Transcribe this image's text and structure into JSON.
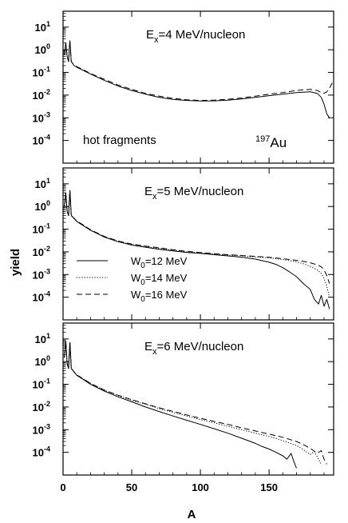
{
  "figure": {
    "xlabel": "A",
    "ylabel": "yield"
  },
  "legend": [
    {
      "label": "W",
      "sub": "0",
      "rest": "=12 MeV",
      "style": "solid"
    },
    {
      "label": "W",
      "sub": "0",
      "rest": "=14 MeV",
      "style": "dotted"
    },
    {
      "label": "W",
      "sub": "0",
      "rest": "=16 MeV",
      "style": "dashed"
    }
  ],
  "chart_data": [
    {
      "type": "line",
      "title_main": "E",
      "title_sub": "x",
      "title_rest": "=4 MeV/nucleon",
      "note": "hot fragments",
      "tag_sup": "197",
      "tag": "Au",
      "x_ticks": [
        "0",
        "50",
        "100",
        "150"
      ],
      "y_ticks": [
        {
          "base": "10",
          "exp": "1"
        },
        {
          "base": "10",
          "exp": "0"
        },
        {
          "base": "10",
          "exp": "-1"
        },
        {
          "base": "10",
          "exp": "-2"
        },
        {
          "base": "10",
          "exp": "-3"
        },
        {
          "base": "10",
          "exp": "-4"
        }
      ],
      "xlim": [
        0,
        197
      ],
      "ylim_log10": [
        -5,
        1.7
      ],
      "yscale": "log",
      "series": [
        {
          "style": "solid",
          "x": [
            1,
            2,
            3,
            4,
            5,
            6,
            8,
            10,
            15,
            20,
            30,
            40,
            50,
            60,
            70,
            80,
            90,
            100,
            110,
            120,
            130,
            140,
            150,
            160,
            170,
            180,
            185,
            188,
            190,
            192,
            194
          ],
          "y": [
            0.6,
            2,
            0.5,
            0.3,
            2.5,
            0.3,
            0.2,
            0.17,
            0.12,
            0.085,
            0.045,
            0.025,
            0.016,
            0.011,
            0.008,
            0.0065,
            0.0058,
            0.0055,
            0.0056,
            0.006,
            0.0068,
            0.008,
            0.0095,
            0.011,
            0.013,
            0.014,
            0.012,
            0.008,
            0.004,
            0.0015,
            0.001
          ]
        },
        {
          "style": "dashed",
          "x": [
            1,
            2,
            3,
            4,
            5,
            6,
            8,
            10,
            15,
            20,
            30,
            40,
            50,
            60,
            70,
            80,
            90,
            100,
            110,
            120,
            130,
            140,
            150,
            160,
            170,
            180,
            185,
            188,
            190,
            192,
            194,
            196
          ],
          "y": [
            0.6,
            2,
            0.5,
            0.3,
            2.5,
            0.3,
            0.21,
            0.18,
            0.13,
            0.09,
            0.05,
            0.028,
            0.018,
            0.012,
            0.009,
            0.0072,
            0.0062,
            0.0058,
            0.006,
            0.0065,
            0.0075,
            0.009,
            0.011,
            0.013,
            0.016,
            0.018,
            0.016,
            0.013,
            0.012,
            0.014,
            0.02,
            0.035
          ]
        }
      ]
    },
    {
      "type": "line",
      "title_main": "E",
      "title_sub": "x",
      "title_rest": "=5 MeV/nucleon",
      "x_ticks": [
        "0",
        "50",
        "100",
        "150"
      ],
      "y_ticks": [
        {
          "base": "10",
          "exp": "1"
        },
        {
          "base": "10",
          "exp": "0"
        },
        {
          "base": "10",
          "exp": "-1"
        },
        {
          "base": "10",
          "exp": "-2"
        },
        {
          "base": "10",
          "exp": "-3"
        },
        {
          "base": "10",
          "exp": "-4"
        }
      ],
      "xlim": [
        0,
        197
      ],
      "ylim_log10": [
        -5,
        1.7
      ],
      "yscale": "log",
      "series": [
        {
          "style": "solid",
          "x": [
            1,
            2,
            3,
            4,
            5,
            6,
            8,
            10,
            15,
            20,
            30,
            40,
            50,
            60,
            70,
            80,
            90,
            100,
            110,
            120,
            130,
            140,
            150,
            155,
            160,
            165,
            170,
            175,
            180,
            183,
            186,
            188,
            190,
            192,
            194
          ],
          "y": [
            1,
            4,
            0.6,
            0.4,
            5,
            0.4,
            0.3,
            0.22,
            0.14,
            0.09,
            0.045,
            0.028,
            0.02,
            0.016,
            0.013,
            0.011,
            0.0095,
            0.0085,
            0.0075,
            0.0066,
            0.0058,
            0.0048,
            0.0035,
            0.0028,
            0.002,
            0.0013,
            0.0008,
            0.0004,
            0.00022,
            8e-05,
            5e-05,
            0.00012,
            4e-05,
            8e-05,
            3e-05
          ]
        },
        {
          "style": "dotted",
          "x": [
            1,
            2,
            3,
            4,
            5,
            6,
            8,
            10,
            15,
            20,
            30,
            40,
            50,
            60,
            70,
            80,
            90,
            100,
            110,
            120,
            130,
            140,
            150,
            160,
            170,
            175,
            180,
            185,
            188,
            190,
            192,
            194
          ],
          "y": [
            1,
            4,
            0.6,
            0.4,
            5,
            0.4,
            0.3,
            0.22,
            0.14,
            0.09,
            0.046,
            0.029,
            0.021,
            0.017,
            0.014,
            0.012,
            0.01,
            0.009,
            0.008,
            0.0072,
            0.0066,
            0.006,
            0.0054,
            0.0046,
            0.0036,
            0.003,
            0.0023,
            0.0016,
            0.0011,
            0.0007,
            0.0003,
            0.0001
          ]
        },
        {
          "style": "dashed",
          "x": [
            1,
            2,
            3,
            4,
            5,
            6,
            8,
            10,
            15,
            20,
            30,
            40,
            50,
            60,
            70,
            80,
            90,
            100,
            110,
            120,
            130,
            140,
            150,
            160,
            170,
            175,
            180,
            185,
            188,
            190,
            192,
            194
          ],
          "y": [
            1,
            4,
            0.6,
            0.4,
            5,
            0.4,
            0.3,
            0.23,
            0.15,
            0.095,
            0.048,
            0.03,
            0.022,
            0.018,
            0.015,
            0.0125,
            0.0105,
            0.0093,
            0.0083,
            0.0075,
            0.0069,
            0.0063,
            0.0057,
            0.005,
            0.0042,
            0.0038,
            0.0033,
            0.0027,
            0.0022,
            0.0016,
            0.0009,
            0.0004
          ]
        }
      ]
    },
    {
      "type": "line",
      "title_main": "E",
      "title_sub": "x",
      "title_rest": "=6 MeV/nucleon",
      "x_ticks": [
        "0",
        "50",
        "100",
        "150"
      ],
      "y_ticks": [
        {
          "base": "10",
          "exp": "1"
        },
        {
          "base": "10",
          "exp": "0"
        },
        {
          "base": "10",
          "exp": "-1"
        },
        {
          "base": "10",
          "exp": "-2"
        },
        {
          "base": "10",
          "exp": "-3"
        },
        {
          "base": "10",
          "exp": "-4"
        }
      ],
      "xlim": [
        0,
        197
      ],
      "ylim_log10": [
        -5,
        1.7
      ],
      "yscale": "log",
      "series": [
        {
          "style": "solid",
          "x": [
            1,
            2,
            3,
            4,
            5,
            6,
            8,
            10,
            15,
            20,
            30,
            40,
            50,
            60,
            70,
            80,
            90,
            100,
            110,
            120,
            130,
            140,
            145,
            150,
            155,
            160,
            163,
            166,
            168,
            170
          ],
          "y": [
            1.5,
            8,
            0.8,
            0.5,
            7,
            0.5,
            0.35,
            0.25,
            0.16,
            0.1,
            0.05,
            0.028,
            0.017,
            0.01,
            0.0063,
            0.004,
            0.0026,
            0.0017,
            0.0011,
            0.0007,
            0.00042,
            0.00025,
            0.00018,
            0.00014,
            0.0001,
            7e-05,
            5e-05,
            9e-05,
            4e-05,
            2e-05
          ]
        },
        {
          "style": "dotted",
          "x": [
            1,
            2,
            3,
            4,
            5,
            6,
            8,
            10,
            15,
            20,
            30,
            40,
            50,
            60,
            70,
            80,
            90,
            100,
            110,
            120,
            130,
            140,
            150,
            160,
            170,
            175,
            180,
            183,
            186,
            188
          ],
          "y": [
            1.5,
            8,
            0.8,
            0.5,
            7,
            0.5,
            0.35,
            0.26,
            0.17,
            0.11,
            0.055,
            0.032,
            0.02,
            0.013,
            0.0085,
            0.0058,
            0.004,
            0.0028,
            0.002,
            0.0014,
            0.001,
            0.0007,
            0.0005,
            0.00033,
            0.0002,
            0.00013,
            8e-05,
            0.00011,
            5e-05,
            3e-05
          ]
        },
        {
          "style": "dashed",
          "x": [
            1,
            2,
            3,
            4,
            5,
            6,
            8,
            10,
            15,
            20,
            30,
            40,
            50,
            60,
            70,
            80,
            90,
            100,
            110,
            120,
            130,
            140,
            150,
            160,
            170,
            175,
            180,
            185,
            188,
            190,
            192
          ],
          "y": [
            1.5,
            8,
            0.8,
            0.5,
            7,
            0.5,
            0.35,
            0.26,
            0.17,
            0.11,
            0.056,
            0.033,
            0.021,
            0.014,
            0.0092,
            0.0064,
            0.0045,
            0.0032,
            0.0023,
            0.0017,
            0.0012,
            0.00088,
            0.00064,
            0.00046,
            0.0003,
            0.00022,
            0.00015,
            9e-05,
            0.00012,
            5e-05,
            3e-05
          ]
        }
      ]
    }
  ]
}
